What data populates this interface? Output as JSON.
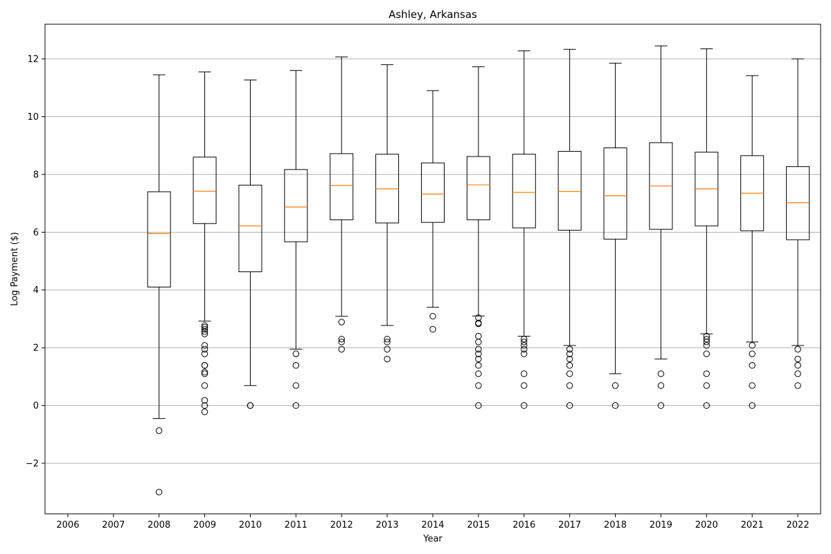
{
  "chart_data": {
    "type": "box",
    "title": "Ashley, Arkansas",
    "xlabel": "Year",
    "ylabel": "Log Payment ($)",
    "ylim": [
      -3.75,
      13.2
    ],
    "yticks": [
      -2,
      0,
      2,
      4,
      6,
      8,
      10,
      12
    ],
    "ytick_labels": [
      "−2",
      "0",
      "2",
      "4",
      "6",
      "8",
      "10",
      "12"
    ],
    "grid": "y",
    "colors": {
      "box": "#000000",
      "median": "#ff7f0e",
      "grid": "#b0b0b0"
    },
    "categories": [
      "2006",
      "2007",
      "2008",
      "2009",
      "2010",
      "2011",
      "2012",
      "2013",
      "2014",
      "2015",
      "2016",
      "2017",
      "2018",
      "2019",
      "2020",
      "2021",
      "2022"
    ],
    "boxes": [
      null,
      null,
      {
        "whislo": -0.45,
        "q1": 4.1,
        "med": 5.95,
        "q3": 7.4,
        "whishi": 11.45,
        "fliers": [
          -0.87,
          -3.0
        ]
      },
      {
        "whislo": 2.92,
        "q1": 6.3,
        "med": 7.42,
        "q3": 8.6,
        "whishi": 11.55,
        "fliers": [
          2.77,
          2.71,
          2.64,
          2.56,
          2.48,
          2.08,
          1.95,
          1.79,
          1.39,
          1.39,
          1.16,
          1.1,
          0.69,
          0.18,
          0.0,
          -0.22
        ]
      },
      {
        "whislo": 0.69,
        "q1": 4.63,
        "med": 6.22,
        "q3": 7.63,
        "whishi": 11.27,
        "fliers": [
          0.0,
          0.0
        ]
      },
      {
        "whislo": 1.95,
        "q1": 5.67,
        "med": 6.87,
        "q3": 8.17,
        "whishi": 11.6,
        "fliers": [
          1.79,
          1.39,
          0.69,
          0.0
        ]
      },
      {
        "whislo": 3.09,
        "q1": 6.43,
        "med": 7.62,
        "q3": 8.72,
        "whishi": 12.07,
        "fliers": [
          2.89,
          2.3,
          2.2,
          1.95
        ]
      },
      {
        "whislo": 2.77,
        "q1": 6.32,
        "med": 7.5,
        "q3": 8.7,
        "whishi": 11.8,
        "fliers": [
          2.3,
          2.2,
          1.95,
          1.61
        ]
      },
      {
        "whislo": 3.4,
        "q1": 6.34,
        "med": 7.32,
        "q3": 8.4,
        "whishi": 10.9,
        "fliers": [
          3.09,
          2.64
        ]
      },
      {
        "whislo": 3.1,
        "q1": 6.43,
        "med": 7.64,
        "q3": 8.62,
        "whishi": 11.73,
        "fliers": [
          3.04,
          2.86,
          2.83,
          2.4,
          2.2,
          1.95,
          1.79,
          1.61,
          1.39,
          1.1,
          0.69,
          0.0
        ]
      },
      {
        "whislo": 2.4,
        "q1": 6.15,
        "med": 7.38,
        "q3": 8.7,
        "whishi": 12.28,
        "fliers": [
          2.3,
          2.2,
          2.08,
          1.95,
          1.79,
          1.1,
          0.69,
          0.0
        ]
      },
      {
        "whislo": 2.08,
        "q1": 6.07,
        "med": 7.41,
        "q3": 8.8,
        "whishi": 12.33,
        "fliers": [
          1.95,
          1.79,
          1.61,
          1.39,
          1.1,
          0.69,
          0.0
        ]
      },
      {
        "whislo": 1.1,
        "q1": 5.76,
        "med": 7.26,
        "q3": 8.92,
        "whishi": 11.85,
        "fliers": [
          0.69,
          0.0
        ]
      },
      {
        "whislo": 1.61,
        "q1": 6.1,
        "med": 7.6,
        "q3": 9.1,
        "whishi": 12.45,
        "fliers": [
          1.1,
          0.69,
          0.0
        ]
      },
      {
        "whislo": 2.48,
        "q1": 6.22,
        "med": 7.5,
        "q3": 8.77,
        "whishi": 12.35,
        "fliers": [
          2.4,
          2.3,
          2.2,
          2.08,
          1.79,
          1.1,
          0.69,
          0.0
        ]
      },
      {
        "whislo": 2.2,
        "q1": 6.05,
        "med": 7.35,
        "q3": 8.65,
        "whishi": 11.42,
        "fliers": [
          2.08,
          1.79,
          1.39,
          0.69,
          0.0
        ]
      },
      {
        "whislo": 2.08,
        "q1": 5.74,
        "med": 7.02,
        "q3": 8.27,
        "whishi": 12.0,
        "fliers": [
          1.95,
          1.61,
          1.39,
          1.1,
          0.69
        ]
      }
    ]
  }
}
